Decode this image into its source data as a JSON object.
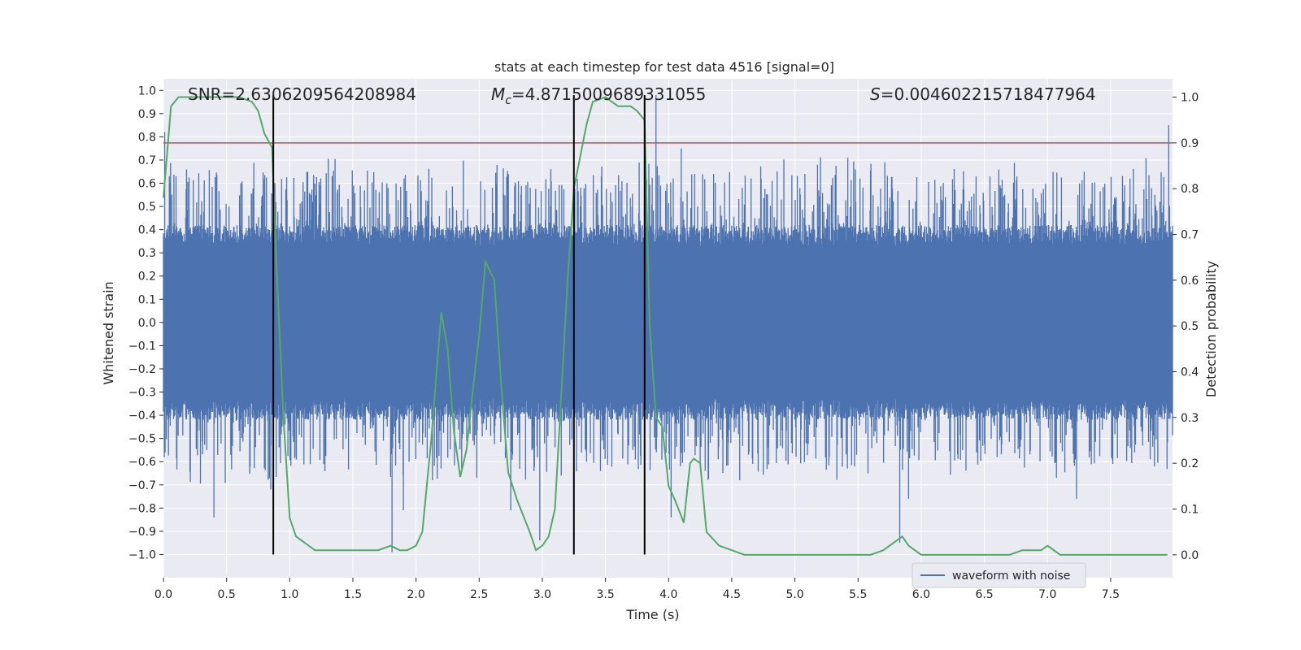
{
  "chart_data": {
    "type": "line",
    "title": "stats at each timestep for test data 4516 [signal=0]",
    "xlabel": "Time (s)",
    "ylabel_left": "Whitened strain",
    "ylabel_right": "Detection probability",
    "xlim": [
      0,
      7.99
    ],
    "ylim_left": [
      -1.1,
      1.05
    ],
    "ylim_right": [
      -0.05,
      1.04
    ],
    "x_ticks": [
      0.0,
      0.5,
      1.0,
      1.5,
      2.0,
      2.5,
      3.0,
      3.5,
      4.0,
      4.5,
      5.0,
      5.5,
      6.0,
      6.5,
      7.0,
      7.5
    ],
    "x_tick_labels": [
      "0.0",
      "0.5",
      "1.0",
      "1.5",
      "2.0",
      "2.5",
      "3.0",
      "3.5",
      "4.0",
      "4.5",
      "5.0",
      "5.5",
      "6.0",
      "6.5",
      "7.0",
      "7.5"
    ],
    "y_left_ticks": [
      1.0,
      0.9,
      0.8,
      0.7,
      0.6,
      0.5,
      0.4,
      0.3,
      0.2,
      0.1,
      0.0,
      -0.1,
      -0.2,
      -0.3,
      -0.4,
      -0.5,
      -0.6,
      -0.7,
      -0.8,
      -0.9,
      -1.0
    ],
    "y_left_tick_labels": [
      "1.0",
      "0.9",
      "0.8",
      "0.7",
      "0.6",
      "0.5",
      "0.4",
      "0.3",
      "0.2",
      "0.1",
      "0.0",
      "−0.1",
      "−0.2",
      "−0.3",
      "−0.4",
      "−0.5",
      "−0.6",
      "−0.7",
      "−0.8",
      "−0.9",
      "−1.0"
    ],
    "y_right_ticks": [
      1.0,
      0.9,
      0.8,
      0.7,
      0.6,
      0.5,
      0.4,
      0.3,
      0.2,
      0.1,
      0.0
    ],
    "y_right_tick_labels": [
      "1.0",
      "0.9",
      "0.8",
      "0.7",
      "0.6",
      "0.5",
      "0.4",
      "0.3",
      "0.2",
      "0.1",
      "0.0"
    ],
    "annotations": {
      "snr": "SNR=2.6306209564208984",
      "mc_symbol": "M",
      "mc_subscript": "c",
      "mc_value": "=4.8715009689331055",
      "s_symbol": "S",
      "s_value": "=0.004602215718477964"
    },
    "threshold": {
      "value": 0.9,
      "axis": "right",
      "color": "#c44e52"
    },
    "vertical_lines": [
      0.87,
      3.25,
      3.81
    ],
    "legend": {
      "label": "waveform with noise",
      "placement": "lower-right"
    },
    "series": [
      {
        "name": "waveform with noise",
        "axis": "left",
        "color": "#4c72b0",
        "kind": "noise",
        "core_amplitude": 0.42,
        "spikes": [
          {
            "x": 0.01,
            "y": 0.82
          },
          {
            "x": 0.4,
            "y": -0.84
          },
          {
            "x": 0.85,
            "y": -0.72
          },
          {
            "x": 1.05,
            "y": -0.58
          },
          {
            "x": 1.81,
            "y": -0.99
          },
          {
            "x": 1.9,
            "y": -0.81
          },
          {
            "x": 2.13,
            "y": -0.68
          },
          {
            "x": 2.75,
            "y": -0.81
          },
          {
            "x": 2.98,
            "y": -0.94
          },
          {
            "x": 3.15,
            "y": -0.66
          },
          {
            "x": 3.9,
            "y": 0.98
          },
          {
            "x": 4.02,
            "y": -0.84
          },
          {
            "x": 4.1,
            "y": 0.75
          },
          {
            "x": 5.83,
            "y": -0.95
          },
          {
            "x": 5.9,
            "y": -0.76
          },
          {
            "x": 7.23,
            "y": -0.76
          },
          {
            "x": 7.96,
            "y": 0.85
          }
        ]
      },
      {
        "name": "Detection probability",
        "axis": "right",
        "color": "#55a868",
        "kind": "line",
        "x": [
          0.0,
          0.06,
          0.12,
          0.18,
          0.3,
          0.45,
          0.6,
          0.7,
          0.75,
          0.8,
          0.86,
          0.9,
          0.95,
          1.0,
          1.05,
          1.1,
          1.2,
          1.3,
          1.4,
          1.5,
          1.6,
          1.7,
          1.8,
          1.87,
          1.93,
          2.0,
          2.05,
          2.12,
          2.2,
          2.25,
          2.3,
          2.35,
          2.4,
          2.45,
          2.5,
          2.55,
          2.62,
          2.68,
          2.73,
          2.8,
          2.9,
          2.95,
          3.0,
          3.05,
          3.1,
          3.15,
          3.2,
          3.25,
          3.3,
          3.35,
          3.4,
          3.5,
          3.6,
          3.7,
          3.75,
          3.81,
          3.85,
          3.9,
          3.95,
          4.0,
          4.05,
          4.12,
          4.17,
          4.2,
          4.25,
          4.3,
          4.4,
          4.5,
          4.6,
          4.8,
          5.0,
          5.2,
          5.4,
          5.6,
          5.7,
          5.8,
          5.85,
          5.9,
          5.95,
          6.0,
          6.2,
          6.4,
          6.6,
          6.7,
          6.8,
          6.9,
          6.95,
          7.0,
          7.05,
          7.1,
          7.2,
          7.3,
          7.4,
          7.5,
          7.7,
          7.9,
          7.95
        ],
        "y": [
          0.78,
          0.98,
          1.0,
          1.0,
          1.0,
          1.0,
          1.0,
          0.99,
          0.97,
          0.92,
          0.89,
          0.6,
          0.3,
          0.08,
          0.04,
          0.03,
          0.01,
          0.01,
          0.01,
          0.01,
          0.01,
          0.01,
          0.02,
          0.01,
          0.01,
          0.02,
          0.05,
          0.25,
          0.53,
          0.45,
          0.27,
          0.17,
          0.23,
          0.36,
          0.48,
          0.64,
          0.6,
          0.35,
          0.18,
          0.12,
          0.05,
          0.01,
          0.02,
          0.04,
          0.1,
          0.35,
          0.6,
          0.8,
          0.87,
          0.94,
          0.99,
          1.0,
          0.98,
          0.98,
          0.97,
          0.95,
          0.5,
          0.3,
          0.28,
          0.15,
          0.12,
          0.07,
          0.2,
          0.21,
          0.2,
          0.05,
          0.02,
          0.01,
          0.0,
          0.0,
          0.0,
          0.0,
          0.0,
          0.0,
          0.01,
          0.03,
          0.04,
          0.02,
          0.01,
          0.0,
          0.0,
          0.0,
          0.0,
          0.0,
          0.01,
          0.01,
          0.01,
          0.02,
          0.01,
          0.0,
          0.0,
          0.0,
          0.0,
          0.0,
          0.0,
          0.0,
          0.0
        ]
      }
    ]
  }
}
